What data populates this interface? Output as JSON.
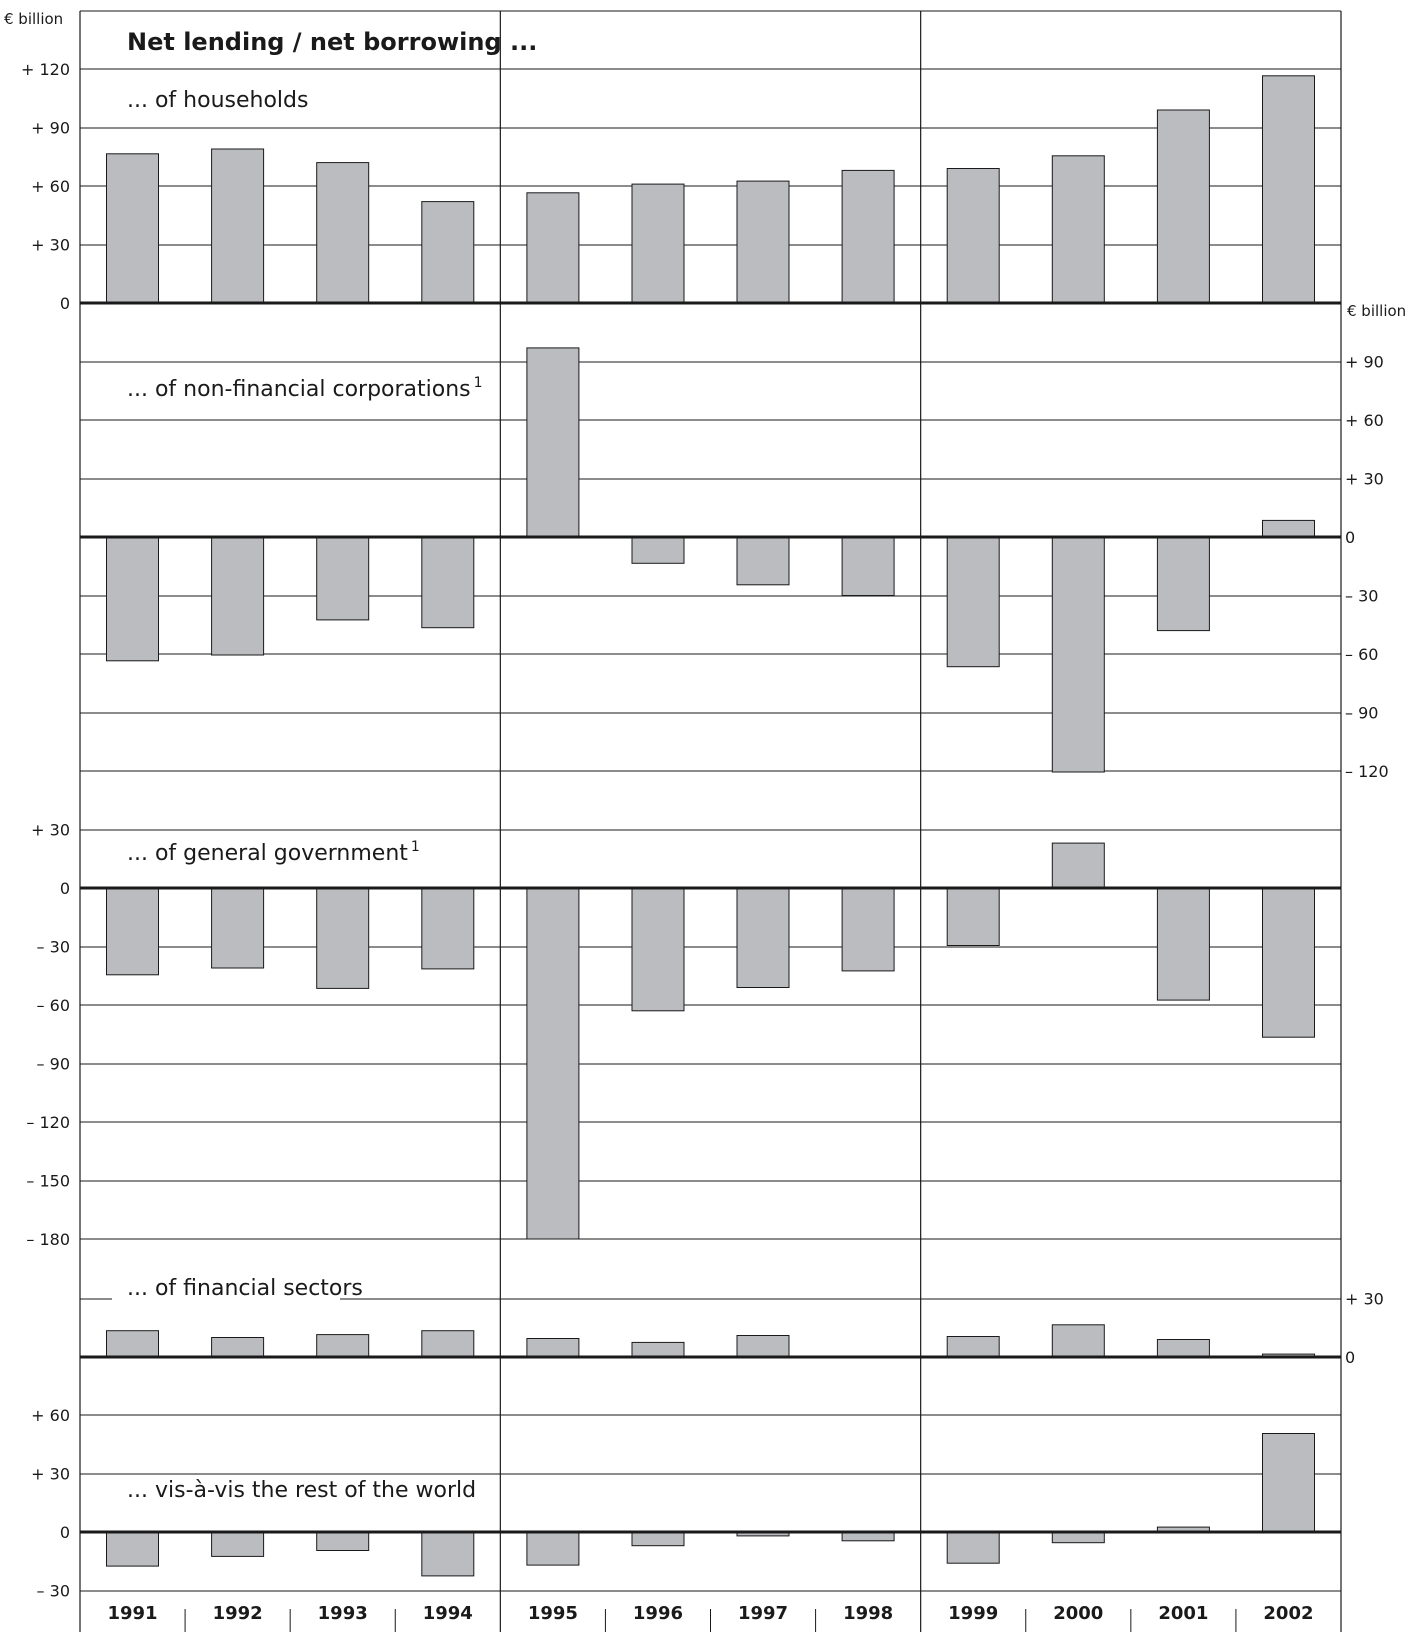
{
  "chart_data": {
    "type": "bar",
    "title": "Net lending / net borrowing ...",
    "unit_label_left": "€ billion",
    "unit_label_right": "€ billion",
    "categories": [
      "1991",
      "1992",
      "1993",
      "1994",
      "1995",
      "1996",
      "1997",
      "1998",
      "1999",
      "2000",
      "2001",
      "2002"
    ],
    "colors": {
      "bar_fill": "#bbbcc0",
      "bar_stroke": "#1a1a1a",
      "grid": "#1a1a1a",
      "text": "#1a1a1a"
    },
    "panels": [
      {
        "title": "... of households",
        "axis_side": "left",
        "ylim": [
          0,
          120
        ],
        "tick_labels": [
          "0",
          "+ 30",
          "+ 60",
          "+ 90",
          "+ 120"
        ],
        "tick_values": [
          0,
          30,
          60,
          90,
          120
        ],
        "values": [
          76.5,
          79,
          72,
          52,
          56.5,
          61,
          62.5,
          68,
          69,
          75.5,
          99,
          116.5
        ]
      },
      {
        "title": "... of non-financial corporations",
        "footnote": "1",
        "axis_side": "right",
        "ylim": [
          -120,
          97
        ],
        "tick_labels": [
          "– 120",
          "– 90",
          "– 60",
          "– 30",
          "0",
          "+ 30",
          "+ 60",
          "+ 90"
        ],
        "tick_values": [
          -120,
          -90,
          -60,
          -30,
          0,
          30,
          60,
          90
        ],
        "values": [
          -63.5,
          -60.5,
          -42.5,
          -46.5,
          97,
          -13.5,
          -24.5,
          -30,
          -66.5,
          -120.5,
          -48,
          8.5
        ]
      },
      {
        "title": "... of general government",
        "footnote": "1",
        "axis_side": "left",
        "ylim": [
          -180,
          30
        ],
        "tick_labels": [
          "– 180",
          "– 150",
          "– 120",
          "– 90",
          "– 60",
          "– 30",
          "0",
          "+ 30"
        ],
        "tick_values": [
          -180,
          -150,
          -120,
          -90,
          -60,
          -30,
          0,
          30
        ],
        "values": [
          -44.5,
          -41,
          -51.5,
          -41.5,
          -180,
          -63,
          -51,
          -42.5,
          -29.5,
          23,
          -57.5,
          -76.5
        ]
      },
      {
        "title": "... of financial sectors",
        "axis_side": "right",
        "ylim": [
          0,
          30
        ],
        "tick_labels": [
          "0",
          "+ 30"
        ],
        "tick_values": [
          0,
          30
        ],
        "values": [
          13.5,
          10,
          11.5,
          13.5,
          9.5,
          7.5,
          11,
          0.5,
          10.5,
          16.5,
          9,
          1.5
        ]
      },
      {
        "title": "... vis-à-vis the rest of the world",
        "axis_side": "left",
        "ylim": [
          -30,
          60
        ],
        "tick_labels": [
          "– 30",
          "0",
          "+ 30",
          "+ 60"
        ],
        "tick_values": [
          -30,
          0,
          30,
          60
        ],
        "values": [
          -17.5,
          -12.5,
          -9.5,
          -22.5,
          -17,
          -7,
          -2,
          -4.5,
          -16,
          -5.5,
          2.5,
          50.5
        ]
      }
    ]
  }
}
